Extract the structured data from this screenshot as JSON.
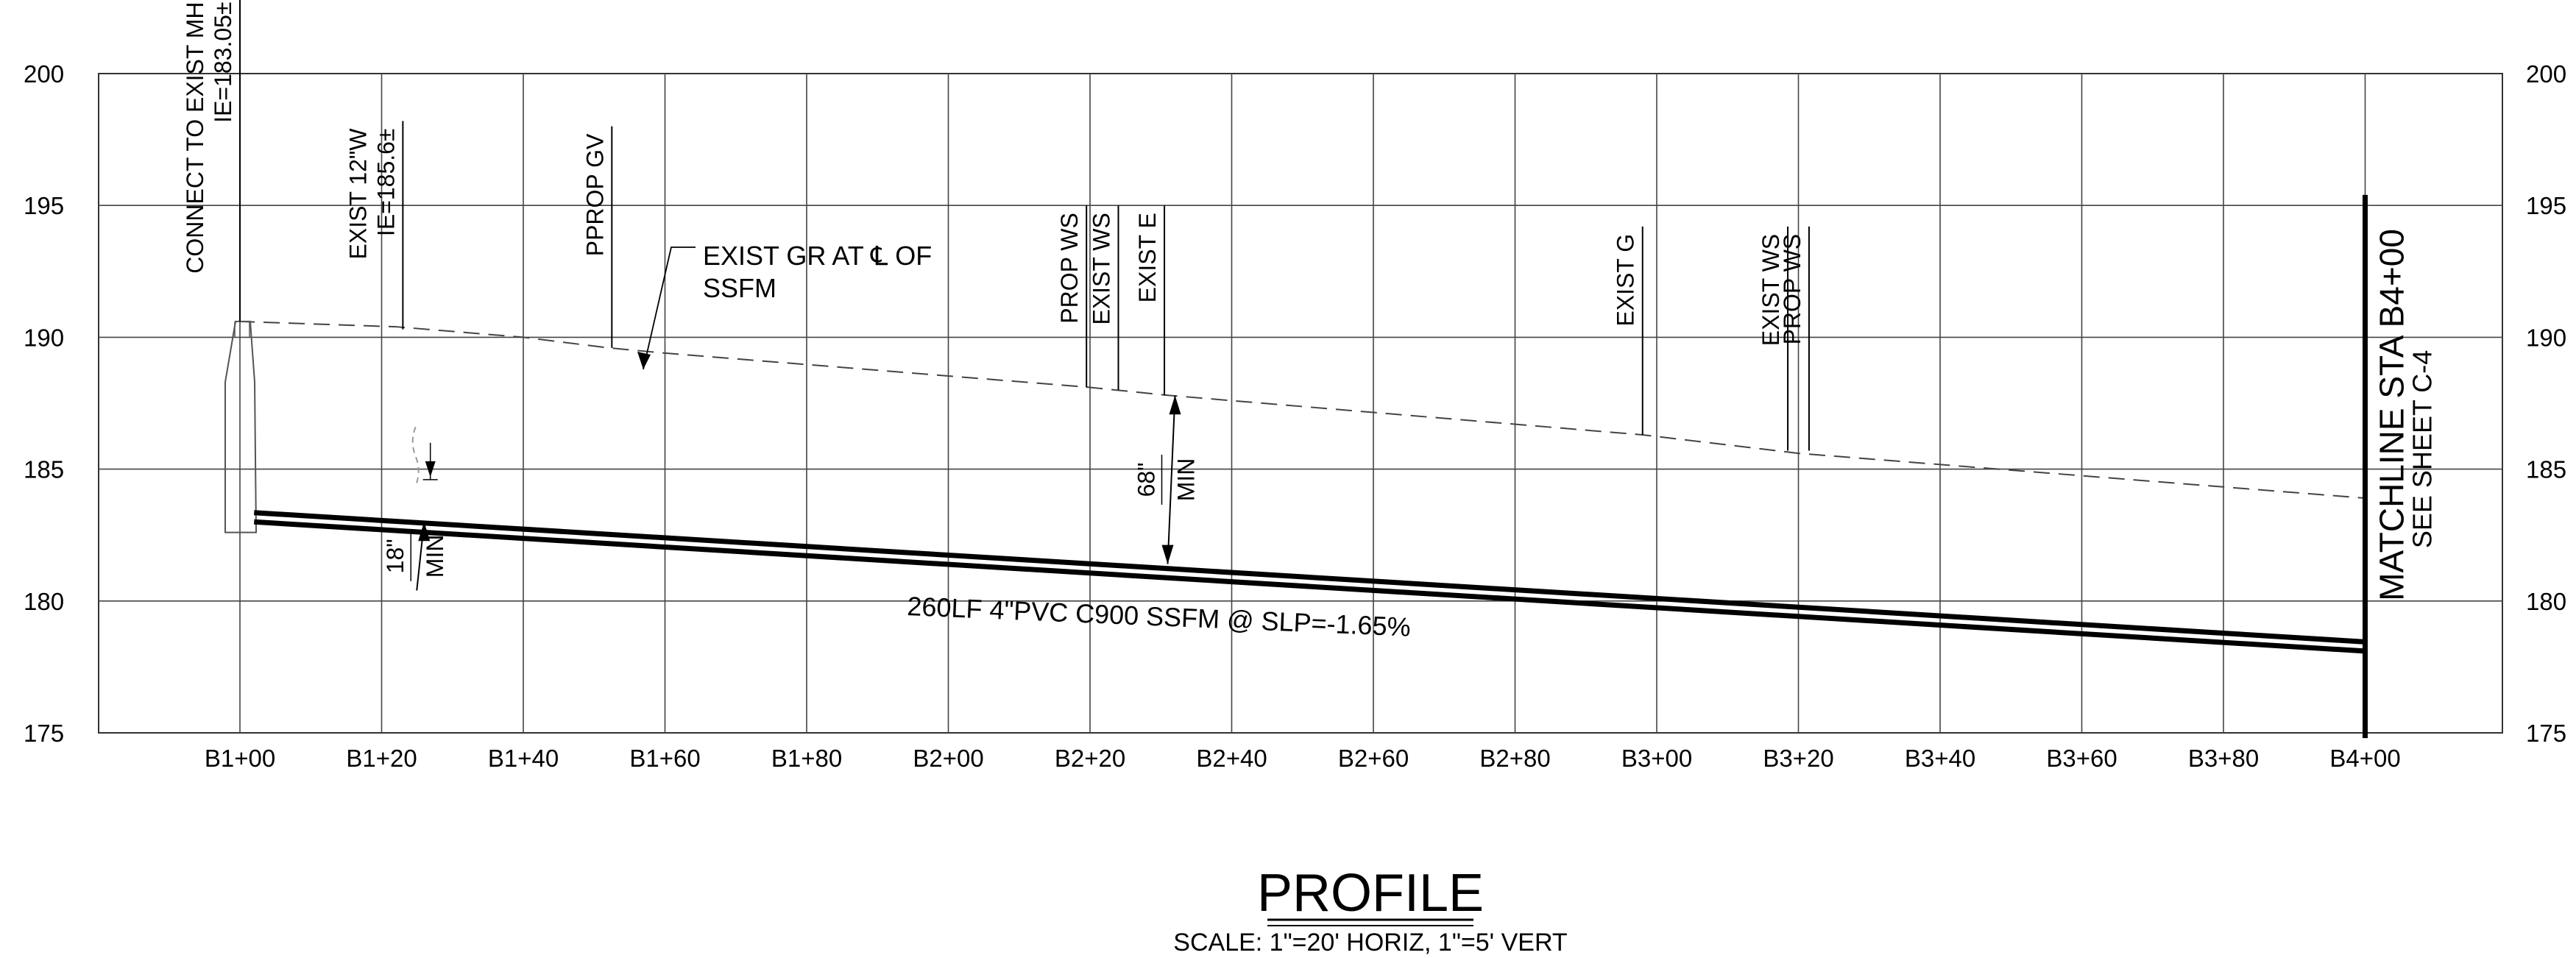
{
  "chart_data": {
    "type": "profile",
    "title": "PROFILE",
    "scale_note": "SCALE: 1\"=20' HORIZ, 1\"=5' VERT",
    "y_ticks": [
      175,
      180,
      185,
      190,
      195,
      200
    ],
    "ylim": [
      175,
      200
    ],
    "x_ticks": [
      {
        "sta": 100,
        "label": "B1+00"
      },
      {
        "sta": 120,
        "label": "B1+20"
      },
      {
        "sta": 140,
        "label": "B1+40"
      },
      {
        "sta": 160,
        "label": "B1+60"
      },
      {
        "sta": 180,
        "label": "B1+80"
      },
      {
        "sta": 200,
        "label": "B2+00"
      },
      {
        "sta": 220,
        "label": "B2+20"
      },
      {
        "sta": 240,
        "label": "B2+40"
      },
      {
        "sta": 260,
        "label": "B2+60"
      },
      {
        "sta": 280,
        "label": "B2+80"
      },
      {
        "sta": 300,
        "label": "B3+00"
      },
      {
        "sta": 320,
        "label": "B3+20"
      },
      {
        "sta": 340,
        "label": "B3+40"
      },
      {
        "sta": 360,
        "label": "B3+60"
      },
      {
        "sta": 380,
        "label": "B3+80"
      },
      {
        "sta": 400,
        "label": "B4+00"
      }
    ],
    "xlim": [
      80,
      412
    ],
    "existing_ground": [
      [
        99.8,
        190.6
      ],
      [
        122,
        190.4
      ],
      [
        140,
        190.0
      ],
      [
        152,
        189.6
      ],
      [
        160,
        189.4
      ],
      [
        220,
        188.1
      ],
      [
        231,
        187.8
      ],
      [
        298,
        186.3
      ],
      [
        320,
        185.6
      ],
      [
        400,
        183.9
      ]
    ],
    "pipe_top": [
      [
        102,
        183.35
      ],
      [
        400,
        178.45
      ]
    ],
    "pipe_bottom": [
      [
        102,
        183.0
      ],
      [
        400,
        178.1
      ]
    ],
    "pipe_label": "260LF 4\"PVC C900 SSFM @ SLP=-1.65%",
    "ground_label_lines": [
      "EXIST GR AT ℄ OF",
      "SSFM"
    ],
    "callouts": [
      {
        "sta": 100,
        "lines": [
          "CONNECT TO EXIST MH",
          "IE=183.05±"
        ],
        "top": 203.0,
        "bottom": 190.6
      },
      {
        "sta": 123,
        "lines": [
          "EXIST 12\"W",
          "IE=185.6±"
        ],
        "top": 198.2,
        "bottom": 190.3
      },
      {
        "sta": 152.5,
        "lines": [
          "PPROP GV"
        ],
        "top": 198.0,
        "bottom": 189.6
      },
      {
        "sta": 219.5,
        "lines": [
          "PROP WS"
        ],
        "top": 195.0,
        "bottom": 188.1
      },
      {
        "sta": 224,
        "lines": [
          "EXIST WS"
        ],
        "top": 195.0,
        "bottom": 188.0
      },
      {
        "sta": 230.5,
        "lines": [
          "EXIST E"
        ],
        "top": 195.0,
        "bottom": 187.8
      },
      {
        "sta": 298,
        "lines": [
          "EXIST G"
        ],
        "top": 194.2,
        "bottom": 186.3
      },
      {
        "sta": 318.5,
        "lines": [
          "EXIST WS"
        ],
        "top": 194.2,
        "bottom": 185.7
      },
      {
        "sta": 321.5,
        "lines": [
          "PROP WS"
        ],
        "top": 194.2,
        "bottom": 185.7
      }
    ],
    "min_cover_1": {
      "lines": [
        "18\"",
        "MIN"
      ],
      "sta": 126
    },
    "min_cover_2": {
      "lines": [
        "68\"",
        "MIN"
      ],
      "sta": 232
    },
    "matchline": {
      "sta": 400,
      "top": 195.4,
      "bottom": 174.8,
      "lines": [
        "MATCHLINE STA B4+00",
        "SEE SHEET C-4"
      ]
    }
  }
}
